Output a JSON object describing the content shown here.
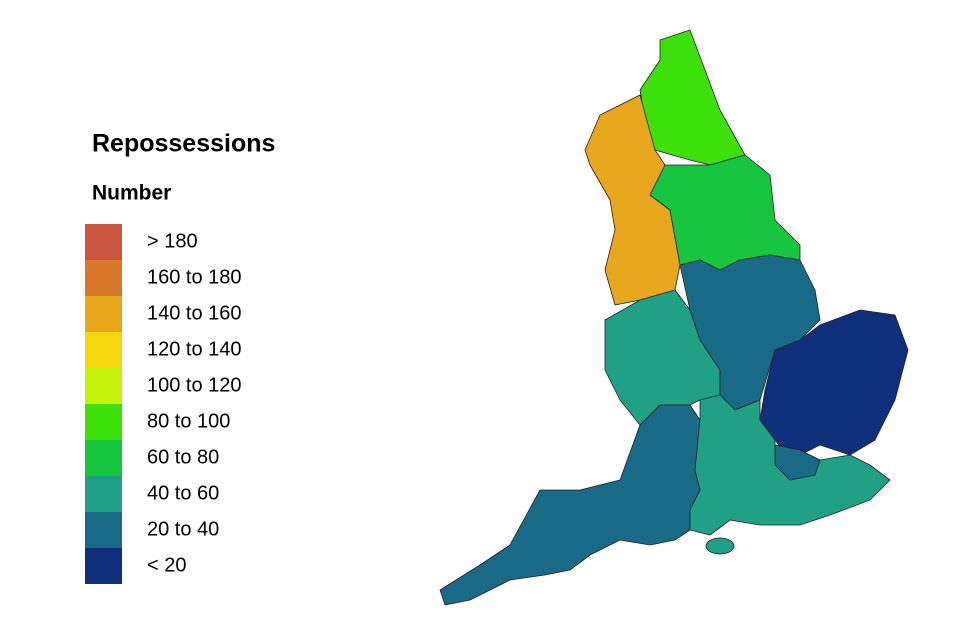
{
  "legend": {
    "title": "Repossessions",
    "subtitle": "Number",
    "items": [
      {
        "label": "> 180",
        "color": "#c8553d"
      },
      {
        "label": "160 to 180",
        "color": "#d9772a"
      },
      {
        "label": "140 to 160",
        "color": "#e8a71c"
      },
      {
        "label": "120 to 140",
        "color": "#f5d60f"
      },
      {
        "label": "100 to 120",
        "color": "#c6f20a"
      },
      {
        "label": "80 to 100",
        "color": "#3ee00a"
      },
      {
        "label": "60 to 80",
        "color": "#16c63e"
      },
      {
        "label": "40 to 60",
        "color": "#20a085"
      },
      {
        "label": "20 to 40",
        "color": "#186a87"
      },
      {
        "label": "< 20",
        "color": "#0f2f7a"
      }
    ]
  }
}
